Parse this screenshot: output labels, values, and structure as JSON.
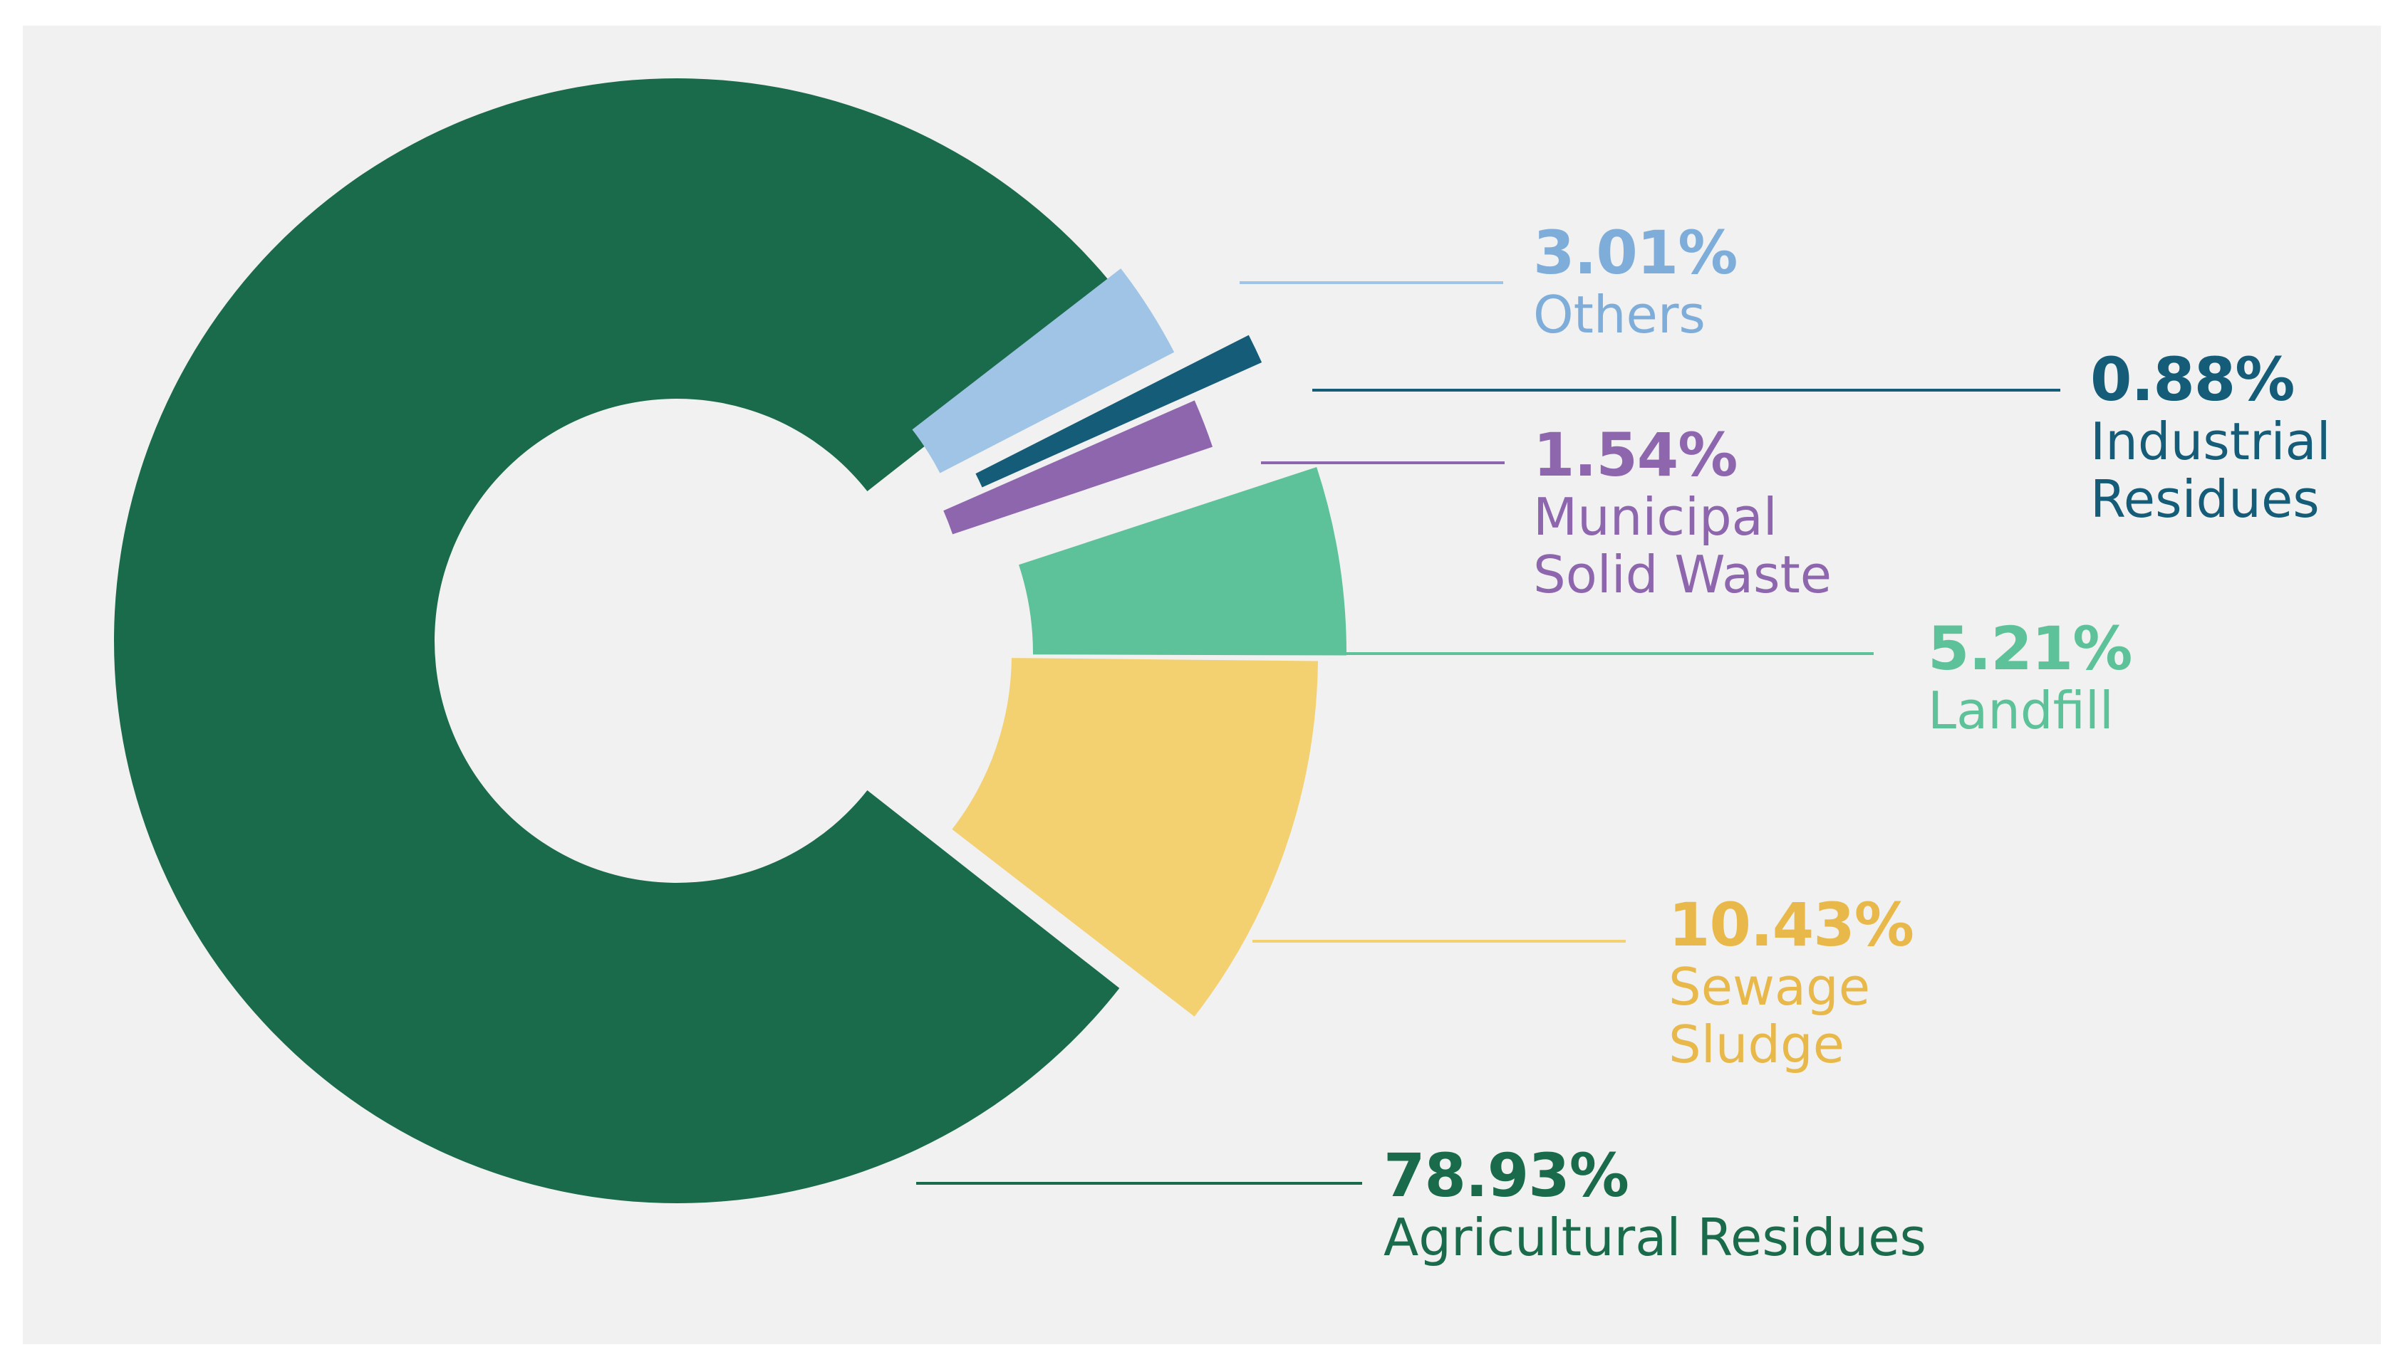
{
  "chart_data": {
    "type": "pie",
    "style": "donut",
    "title": "",
    "slices": [
      {
        "label": "Agricultural Residues",
        "pct_text": "78.93%",
        "value": 78.93,
        "color": "#1a6b4b"
      },
      {
        "label": "Sewage Sludge",
        "pct_text": "10.43%",
        "value": 10.43,
        "color": "#f3d070"
      },
      {
        "label": "Landfill",
        "pct_text": "5.21%",
        "value": 5.21,
        "color": "#5dc29a"
      },
      {
        "label": "Municipal Solid Waste",
        "pct_text": "1.54%",
        "value": 1.54,
        "color": "#8d66ae"
      },
      {
        "label": "Industrial Residues",
        "pct_text": "0.88%",
        "value": 0.88,
        "color": "#145c78"
      },
      {
        "label": "Others",
        "pct_text": "3.01%",
        "value": 3.01,
        "color": "#9fc4e6"
      }
    ]
  },
  "labels": {
    "agricultural": {
      "pct": "78.93%",
      "line1": "Agricultural Residues"
    },
    "sewage": {
      "pct": "10.43%",
      "line1": "Sewage",
      "line2": "Sludge"
    },
    "landfill": {
      "pct": "5.21%",
      "line1": "Landfill"
    },
    "municipal": {
      "pct": "1.54%",
      "line1": "Municipal",
      "line2": "Solid Waste"
    },
    "industrial": {
      "pct": "0.88%",
      "line1": "Industrial",
      "line2": "Residues"
    },
    "others": {
      "pct": "3.01%",
      "line1": "Others"
    }
  },
  "colors": {
    "agricultural_text": "#1a6b4b",
    "sewage_text": "#e8b94a",
    "landfill_text": "#5dc29a",
    "municipal_text": "#8d66ae",
    "industrial_text": "#145c78",
    "others_text": "#7fadd9"
  }
}
